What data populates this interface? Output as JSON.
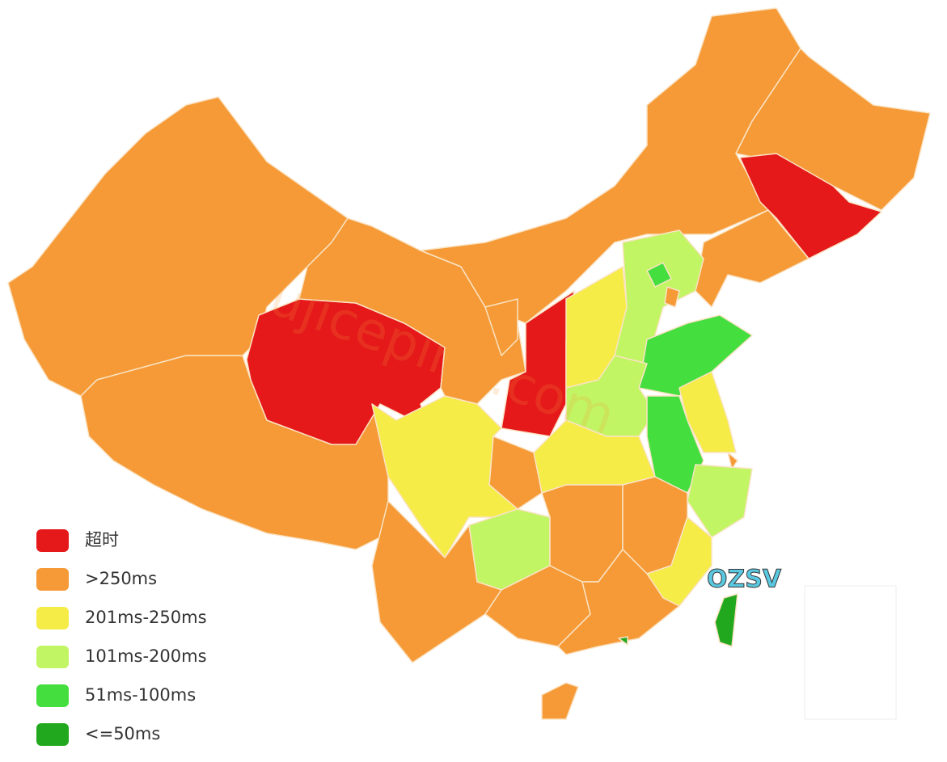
{
  "legend": {
    "items": [
      {
        "label": "超时",
        "color": "#e5191a"
      },
      {
        "label": ">250ms",
        "color": "#f59a36"
      },
      {
        "label": "201ms-250ms",
        "color": "#f5ec48"
      },
      {
        "label": "101ms-200ms",
        "color": "#c2f563"
      },
      {
        "label": "51ms-100ms",
        "color": "#44de3f"
      },
      {
        "label": "<=50ms",
        "color": "#22a81e"
      }
    ]
  },
  "watermark": "zhujiceping.com",
  "badge": "OZSV"
}
